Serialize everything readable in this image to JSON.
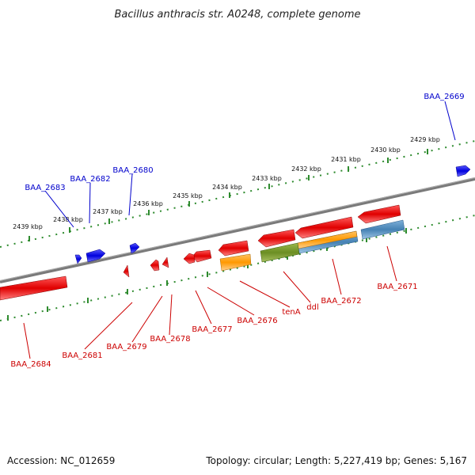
{
  "title": "Bacillus anthracis str. A0248, complete genome",
  "footer": {
    "accession": "Accession: NC_012659",
    "summary": "Topology: circular; Length: 5,227,419 bp; Genes: 5,167"
  },
  "colors": {
    "backbone": "#888888",
    "ruler": "#2e8b2e",
    "forward_label": "#0000cc",
    "reverse_label": "#cc0000",
    "gene_red": "#e00000",
    "gene_blue": "#0000dd",
    "gene_orange": "#ff9900",
    "gene_green": "#6b8e23",
    "gene_steel": "#4682b4"
  },
  "ruler_ticks": [
    "2429 kbp",
    "2430 kbp",
    "2431 kbp",
    "2432 kbp",
    "2433 kbp",
    "2434 kbp",
    "2435 kbp",
    "2436 kbp",
    "2437 kbp",
    "2438 kbp",
    "2439 kbp"
  ],
  "forward_labels": [
    "BAA_2669",
    "BAA_2680",
    "BAA_2682",
    "BAA_2683"
  ],
  "reverse_labels": [
    "BAA_2671",
    "BAA_2672",
    "ddl",
    "tenA",
    "BAA_2676",
    "BAA_2677",
    "BAA_2678",
    "BAA_2679",
    "BAA_2681",
    "BAA_2684"
  ]
}
